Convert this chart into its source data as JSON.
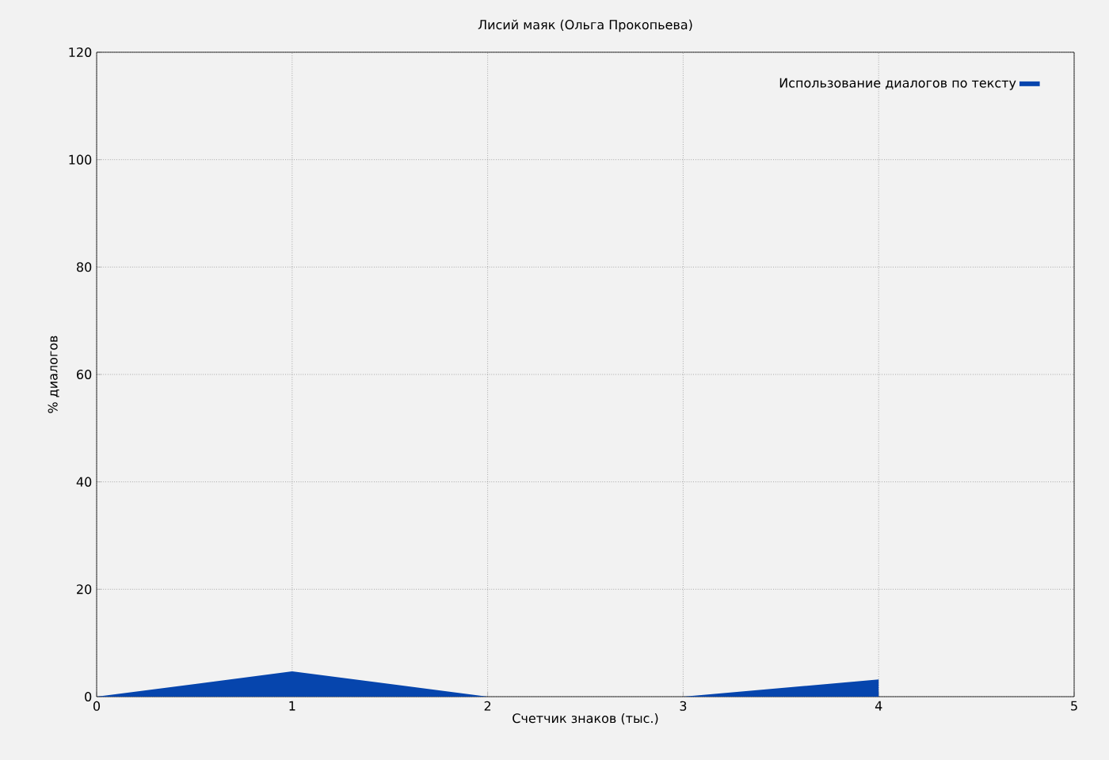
{
  "chart_data": {
    "type": "area",
    "title": "Лисий маяк (Ольга Прокопьева)",
    "xlabel": "Счетчик знаков (тыс.)",
    "ylabel": "% диалогов",
    "x": [
      0,
      1,
      2,
      3,
      4
    ],
    "series": [
      {
        "name": "Использование диалогов по тексту",
        "color": "#0645ad",
        "values": [
          0,
          4.7,
          0,
          0,
          3.2
        ]
      }
    ],
    "xlim": [
      0,
      5
    ],
    "ylim": [
      0,
      120
    ],
    "xticks": [
      0,
      1,
      2,
      3,
      4,
      5
    ],
    "yticks": [
      0,
      20,
      40,
      60,
      80,
      100,
      120
    ],
    "grid": true,
    "legend": "top right"
  }
}
